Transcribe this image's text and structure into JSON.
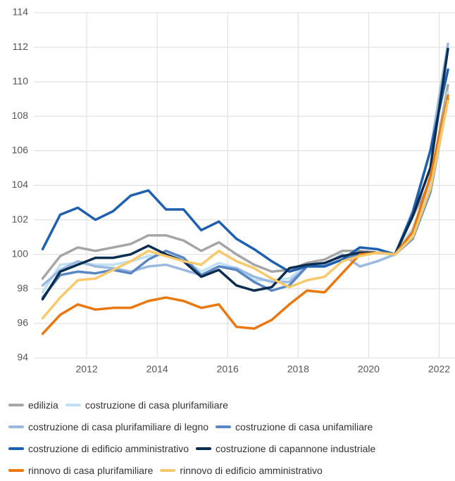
{
  "chart_data": {
    "type": "line",
    "x": [
      2010.75,
      2011.25,
      2011.75,
      2012.25,
      2012.75,
      2013.25,
      2013.75,
      2014.25,
      2014.75,
      2015.25,
      2015.75,
      2016.25,
      2016.75,
      2017.25,
      2017.75,
      2018.25,
      2018.75,
      2019.25,
      2019.75,
      2020.25,
      2020.75,
      2021.25,
      2021.75,
      2022.25
    ],
    "xlim": [
      2010.5,
      2022.45
    ],
    "xticks": [
      2012,
      2014,
      2016,
      2018,
      2020,
      2022
    ],
    "ylim": [
      94,
      114
    ],
    "yticks": [
      94,
      96,
      98,
      100,
      102,
      104,
      106,
      108,
      110,
      112,
      114
    ],
    "grid": true,
    "series": [
      {
        "name": "edilizia",
        "color": "#a6a6a6",
        "values": [
          98.6,
          99.9,
          100.4,
          100.2,
          100.4,
          100.6,
          101.1,
          101.1,
          100.8,
          100.2,
          100.7,
          100.0,
          99.4,
          99.0,
          99.1,
          99.5,
          99.7,
          100.2,
          100.2,
          100.1,
          100.0,
          102.2,
          104.2,
          109.8
        ]
      },
      {
        "name": "costruzione di casa plurifamiliare",
        "color": "#bfe0f5",
        "values": [
          97.8,
          99.4,
          99.5,
          99.4,
          99.4,
          99.6,
          99.9,
          100.0,
          99.7,
          99.0,
          99.5,
          99.2,
          98.5,
          98.5,
          98.6,
          99.4,
          99.5,
          99.9,
          100.1,
          100.1,
          100.0,
          101.5,
          104.0,
          109.4
        ]
      },
      {
        "name": "costruzione di casa plurifamiliare di legno",
        "color": "#9ab8e0",
        "values": [
          98.2,
          99.1,
          99.6,
          99.3,
          99.2,
          99.0,
          99.3,
          99.4,
          99.1,
          98.8,
          99.3,
          99.2,
          98.7,
          98.4,
          98.4,
          99.3,
          99.4,
          100.0,
          99.3,
          99.6,
          100.0,
          102.5,
          106.0,
          112.2
        ]
      },
      {
        "name": "costruzione di casa unifamiliare",
        "color": "#5b86c4",
        "values": [
          97.5,
          98.8,
          99.0,
          98.9,
          99.1,
          98.9,
          99.7,
          100.2,
          99.8,
          98.8,
          99.3,
          99.1,
          98.4,
          97.9,
          98.2,
          99.3,
          99.3,
          99.7,
          100.0,
          100.1,
          100.0,
          100.9,
          103.6,
          109.0
        ]
      },
      {
        "name": "costruzione di edificio amministrativo",
        "color": "#1f5fb0",
        "values": [
          100.3,
          102.3,
          102.7,
          102.0,
          102.5,
          103.4,
          103.7,
          102.6,
          102.6,
          101.4,
          101.9,
          100.9,
          100.3,
          99.6,
          99.0,
          99.3,
          99.3,
          99.7,
          100.4,
          100.3,
          100.0,
          102.4,
          106.0,
          110.7
        ]
      },
      {
        "name": "costruzione di capannone industriale",
        "color": "#0b2d4f",
        "values": [
          97.4,
          99.0,
          99.4,
          99.8,
          99.8,
          100.0,
          100.5,
          100.0,
          99.6,
          98.7,
          99.1,
          98.2,
          97.9,
          98.1,
          99.2,
          99.4,
          99.5,
          99.9,
          100.1,
          100.1,
          100.0,
          102.2,
          105.0,
          111.9
        ]
      },
      {
        "name": "rinnovo di casa plurifamiliare",
        "color": "#e8780f",
        "values": [
          95.4,
          96.5,
          97.1,
          96.8,
          96.9,
          96.9,
          97.3,
          97.5,
          97.3,
          96.9,
          97.1,
          95.8,
          95.7,
          96.2,
          97.1,
          97.9,
          97.8,
          98.9,
          100.0,
          100.1,
          100.0,
          101.3,
          104.5,
          109.2
        ]
      },
      {
        "name": "rinnovo di edificio amministrativo",
        "color": "#f7c96b",
        "values": [
          96.3,
          97.5,
          98.5,
          98.6,
          99.1,
          99.6,
          100.2,
          99.9,
          99.6,
          99.4,
          100.2,
          99.6,
          99.2,
          98.6,
          98.1,
          98.5,
          98.7,
          99.6,
          99.9,
          100.1,
          100.0,
          101.0,
          103.8,
          108.9
        ]
      }
    ]
  }
}
